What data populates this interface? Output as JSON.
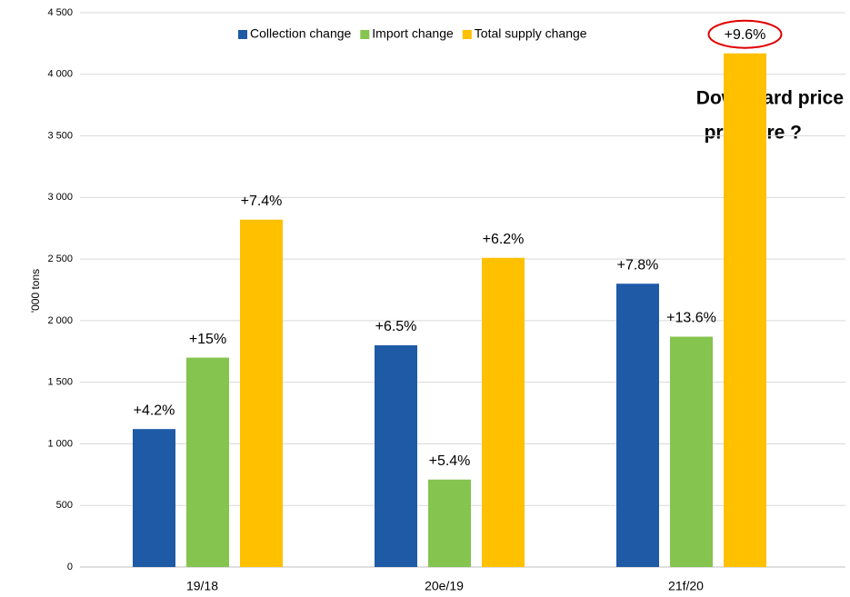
{
  "chart_data": {
    "type": "bar",
    "y_label": "'000 tons",
    "categories": [
      "19/18",
      "20e/19",
      "21f/20"
    ],
    "series": [
      {
        "name": "Collection change",
        "color": "#1f5aa6",
        "values": [
          1120,
          1800,
          2300
        ],
        "change_labels": [
          "+4.2%",
          "+6.5%",
          "+7.8%"
        ]
      },
      {
        "name": "Import change",
        "color": "#84c44f",
        "values": [
          1700,
          710,
          1870
        ],
        "change_labels": [
          "+15%",
          "+5.4%",
          "+13.6%"
        ]
      },
      {
        "name": "Total supply change",
        "color": "#ffc000",
        "values": [
          2820,
          2510,
          4170
        ],
        "change_labels": [
          "+7.4%",
          "+6.2%",
          "+9.6%"
        ]
      }
    ],
    "ylim": [
      0,
      4500
    ],
    "yticks": [
      0,
      500,
      {
        "value": 1000,
        "label": "1 000"
      },
      {
        "value": 1500,
        "label": "1 500"
      },
      {
        "value": 2000,
        "label": "2 000"
      },
      {
        "value": 2500,
        "label": "2 500"
      },
      {
        "value": 3000,
        "label": "3 000"
      },
      {
        "value": 3500,
        "label": "3 500"
      },
      {
        "value": 4000,
        "label": "4 000"
      },
      {
        "value": 4500,
        "label": "4 500"
      }
    ],
    "grid": true,
    "legend": "top",
    "annotation": [
      "Downward price",
      "pressure ?"
    ]
  }
}
